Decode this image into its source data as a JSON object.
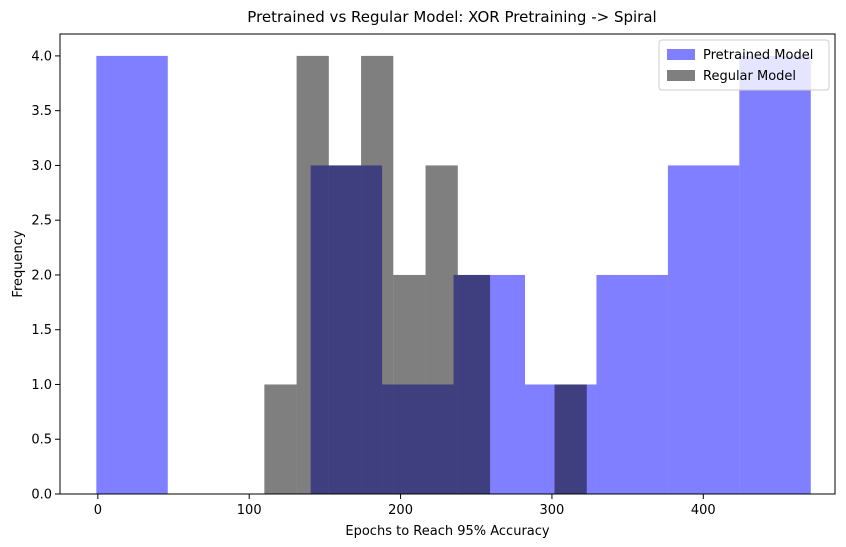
{
  "chart_data": {
    "type": "histogram",
    "title": "Pretrained vs Regular Model: XOR Pretraining -> Spiral",
    "xlabel": "Epochs to Reach 95% Accuracy",
    "ylabel": "Frequency",
    "xlim": [
      -25,
      487
    ],
    "ylim": [
      0,
      4.2
    ],
    "xticks": [
      0,
      100,
      200,
      300,
      400
    ],
    "xtick_labels": [
      "0",
      "100",
      "200",
      "300",
      "400"
    ],
    "yticks": [
      0,
      0.5,
      1,
      1.5,
      2,
      2.5,
      3,
      3.5,
      4
    ],
    "ytick_labels": [
      "0.0",
      "0.5",
      "1.0",
      "1.5",
      "2.0",
      "2.5",
      "3.0",
      "3.5",
      "4.0"
    ],
    "grid": false,
    "legend_position": "top-right",
    "series": [
      {
        "name": "Pretrained Model",
        "color": "#0000ff",
        "alpha": 0.5,
        "bins": [
          {
            "x0": -1,
            "x1": 46.2,
            "count": 4
          },
          {
            "x0": 46.2,
            "x1": 93.4,
            "count": 0
          },
          {
            "x0": 93.4,
            "x1": 140.6,
            "count": 0
          },
          {
            "x0": 140.6,
            "x1": 187.8,
            "count": 3
          },
          {
            "x0": 187.8,
            "x1": 235,
            "count": 1
          },
          {
            "x0": 235,
            "x1": 282.2,
            "count": 2
          },
          {
            "x0": 282.2,
            "x1": 329.4,
            "count": 1
          },
          {
            "x0": 329.4,
            "x1": 376.6,
            "count": 2
          },
          {
            "x0": 376.6,
            "x1": 423.8,
            "count": 3
          },
          {
            "x0": 423.8,
            "x1": 471,
            "count": 4
          }
        ]
      },
      {
        "name": "Regular Model",
        "color": "#000000",
        "alpha": 0.5,
        "bins": [
          {
            "x0": 110,
            "x1": 131.3,
            "count": 1
          },
          {
            "x0": 131.3,
            "x1": 152.6,
            "count": 4
          },
          {
            "x0": 152.6,
            "x1": 173.9,
            "count": 3
          },
          {
            "x0": 173.9,
            "x1": 195.2,
            "count": 4
          },
          {
            "x0": 195.2,
            "x1": 216.5,
            "count": 2
          },
          {
            "x0": 216.5,
            "x1": 237.8,
            "count": 3
          },
          {
            "x0": 237.8,
            "x1": 259.1,
            "count": 2
          },
          {
            "x0": 259.1,
            "x1": 280.4,
            "count": 0
          },
          {
            "x0": 280.4,
            "x1": 301.7,
            "count": 0
          },
          {
            "x0": 301.7,
            "x1": 323,
            "count": 1
          }
        ]
      }
    ]
  }
}
